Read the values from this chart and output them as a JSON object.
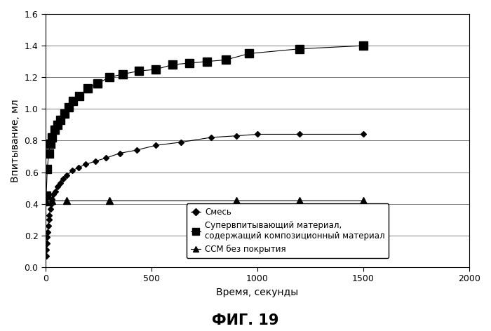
{
  "title": "ФИГ. 19",
  "ylabel": "Впитывание, мл",
  "xlabel": "Время, секунды",
  "xlim": [
    0,
    2000
  ],
  "ylim": [
    0,
    1.6
  ],
  "xticks": [
    0,
    500,
    1000,
    1500,
    2000
  ],
  "yticks": [
    0,
    0.2,
    0.4,
    0.6,
    0.8,
    1.0,
    1.2,
    1.4,
    1.6
  ],
  "background_color": "#ffffff",
  "series1_label": "Смесь",
  "series2_label": "Супервпитывающий материал,\nсодержащий композиционный материал",
  "series3_label": "ССМ без покрытия",
  "series1_marker": "D",
  "series2_marker": "s",
  "series3_marker": "^",
  "series1_x": [
    2,
    4,
    6,
    8,
    10,
    12,
    15,
    18,
    22,
    26,
    30,
    38,
    46,
    55,
    68,
    82,
    100,
    125,
    155,
    190,
    235,
    285,
    350,
    430,
    520,
    640,
    780,
    900,
    1000,
    1200,
    1500
  ],
  "series1_y": [
    0.07,
    0.11,
    0.15,
    0.19,
    0.22,
    0.26,
    0.3,
    0.33,
    0.37,
    0.4,
    0.43,
    0.46,
    0.48,
    0.51,
    0.53,
    0.56,
    0.58,
    0.61,
    0.63,
    0.65,
    0.67,
    0.69,
    0.72,
    0.74,
    0.77,
    0.79,
    0.82,
    0.83,
    0.84,
    0.84,
    0.84
  ],
  "series2_x": [
    3,
    8,
    15,
    22,
    30,
    42,
    55,
    70,
    88,
    108,
    130,
    160,
    200,
    245,
    300,
    365,
    440,
    520,
    600,
    680,
    760,
    850,
    960,
    1200,
    1500
  ],
  "series2_y": [
    0.45,
    0.62,
    0.72,
    0.78,
    0.82,
    0.87,
    0.9,
    0.93,
    0.97,
    1.01,
    1.05,
    1.08,
    1.13,
    1.16,
    1.2,
    1.22,
    1.24,
    1.25,
    1.28,
    1.29,
    1.3,
    1.31,
    1.35,
    1.38,
    1.4
  ],
  "series3_x": [
    5,
    30,
    100,
    300,
    900,
    1200,
    1500
  ],
  "series3_y": [
    0.41,
    0.42,
    0.42,
    0.42,
    0.42,
    0.42,
    0.42
  ],
  "figsize": [
    7.0,
    4.72
  ],
  "dpi": 100
}
